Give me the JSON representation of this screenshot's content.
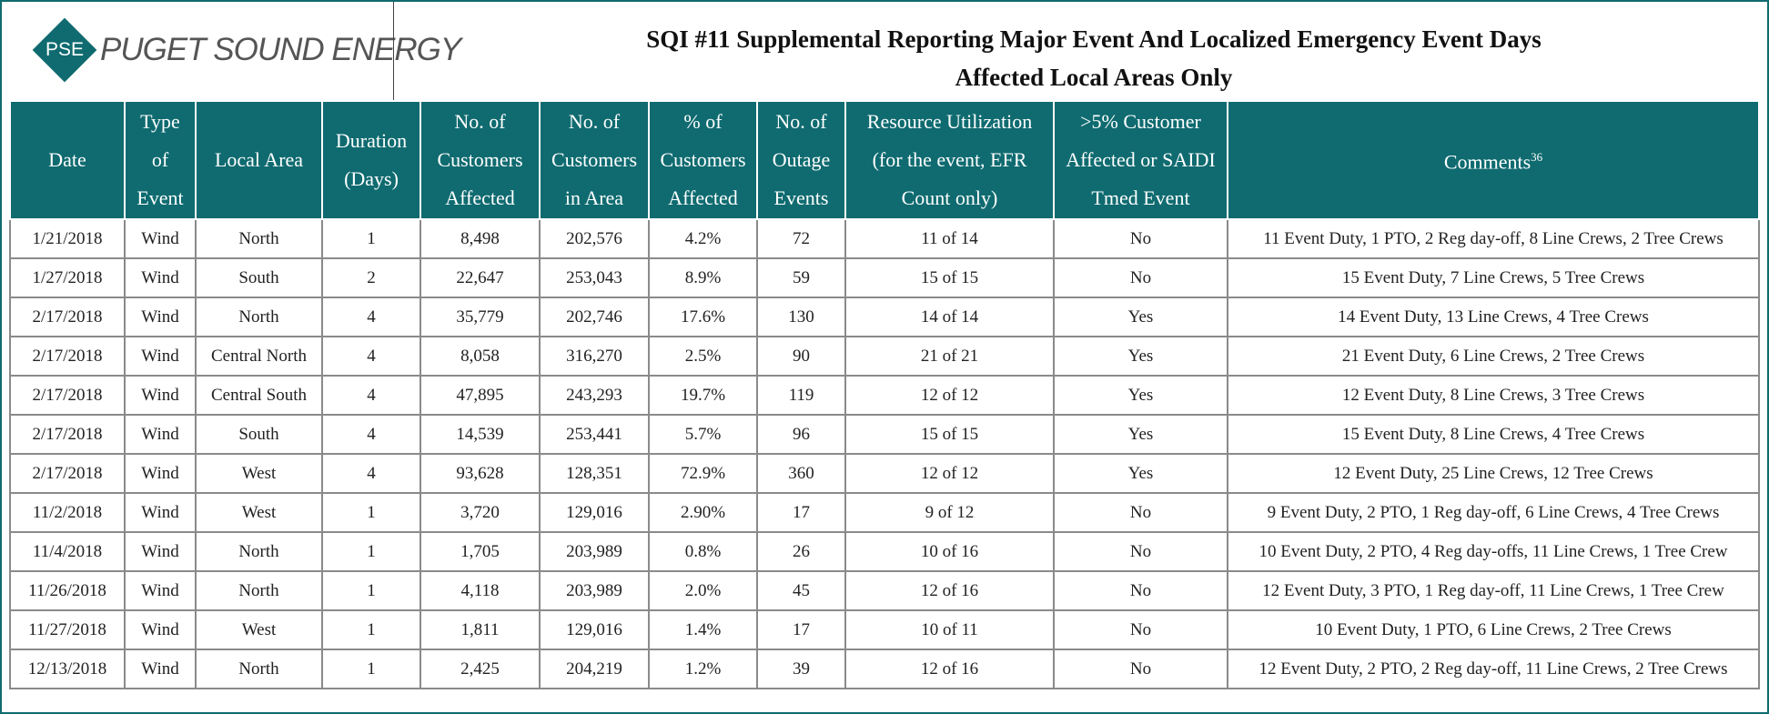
{
  "header": {
    "logo_mark": "PSE",
    "logo_text": "PUGET SOUND ENERGY",
    "title": "SQI #11 Supplemental Reporting Major Event And Localized Emergency Event Days",
    "subtitle": "Affected Local Areas Only"
  },
  "table": {
    "columns": [
      [
        "Date"
      ],
      [
        "Type",
        "of",
        "Event"
      ],
      [
        "Local Area"
      ],
      [
        "Duration",
        "(Days)"
      ],
      [
        "No. of",
        "Customers",
        "Affected"
      ],
      [
        "No. of",
        "Customers",
        "in Area"
      ],
      [
        "% of",
        "Customers",
        "Affected"
      ],
      [
        "No. of",
        "Outage",
        "Events"
      ],
      [
        "Resource Utilization",
        "(for the event, EFR",
        "Count only)"
      ],
      [
        ">5% Customer",
        "Affected or SAIDI",
        "Tmed Event"
      ],
      [
        "Comments"
      ]
    ],
    "comments_footnote": "36",
    "rows": [
      [
        "1/21/2018",
        "Wind",
        "North",
        "1",
        "8,498",
        "202,576",
        "4.2%",
        "72",
        "11 of 14",
        "No",
        "11 Event Duty, 1 PTO, 2 Reg day-off, 8 Line Crews, 2 Tree Crews"
      ],
      [
        "1/27/2018",
        "Wind",
        "South",
        "2",
        "22,647",
        "253,043",
        "8.9%",
        "59",
        "15 of 15",
        "No",
        "15 Event Duty, 7 Line Crews, 5 Tree Crews"
      ],
      [
        "2/17/2018",
        "Wind",
        "North",
        "4",
        "35,779",
        "202,746",
        "17.6%",
        "130",
        "14 of 14",
        "Yes",
        "14 Event Duty, 13 Line Crews, 4 Tree Crews"
      ],
      [
        "2/17/2018",
        "Wind",
        "Central North",
        "4",
        "8,058",
        "316,270",
        "2.5%",
        "90",
        "21 of 21",
        "Yes",
        "21 Event Duty, 6 Line Crews, 2 Tree Crews"
      ],
      [
        "2/17/2018",
        "Wind",
        "Central South",
        "4",
        "47,895",
        "243,293",
        "19.7%",
        "119",
        "12 of 12",
        "Yes",
        "12 Event Duty, 8 Line Crews, 3 Tree Crews"
      ],
      [
        "2/17/2018",
        "Wind",
        "South",
        "4",
        "14,539",
        "253,441",
        "5.7%",
        "96",
        "15 of 15",
        "Yes",
        "15 Event Duty, 8 Line Crews, 4 Tree Crews"
      ],
      [
        "2/17/2018",
        "Wind",
        "West",
        "4",
        "93,628",
        "128,351",
        "72.9%",
        "360",
        "12 of 12",
        "Yes",
        "12 Event Duty, 25 Line Crews, 12 Tree Crews"
      ],
      [
        "11/2/2018",
        "Wind",
        "West",
        "1",
        "3,720",
        "129,016",
        "2.90%",
        "17",
        "9 of 12",
        "No",
        "9 Event Duty, 2 PTO, 1 Reg day-off, 6 Line Crews, 4 Tree Crews"
      ],
      [
        "11/4/2018",
        "Wind",
        "North",
        "1",
        "1,705",
        "203,989",
        "0.8%",
        "26",
        "10 of 16",
        "No",
        "10 Event Duty, 2 PTO, 4 Reg day-offs, 11 Line Crews, 1 Tree Crew"
      ],
      [
        "11/26/2018",
        "Wind",
        "North",
        "1",
        "4,118",
        "203,989",
        "2.0%",
        "45",
        "12 of 16",
        "No",
        "12 Event Duty, 3 PTO, 1 Reg day-off, 11 Line Crews, 1 Tree Crew"
      ],
      [
        "11/27/2018",
        "Wind",
        "West",
        "1",
        "1,811",
        "129,016",
        "1.4%",
        "17",
        "10 of 11",
        "No",
        "10 Event Duty, 1 PTO, 6 Line Crews, 2 Tree Crews"
      ],
      [
        "12/13/2018",
        "Wind",
        "North",
        "1",
        "2,425",
        "204,219",
        "1.2%",
        "39",
        "12 of 16",
        "No",
        "12 Event Duty, 2 PTO, 2 Reg day-off, 11 Line Crews, 2 Tree Crews"
      ]
    ]
  }
}
